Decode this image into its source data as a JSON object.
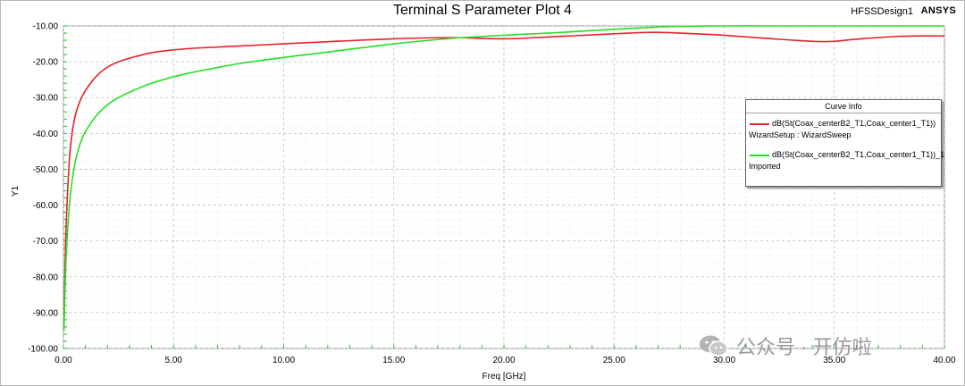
{
  "header": {
    "title": "Terminal S Parameter Plot 4",
    "design_name": "HFSSDesign1",
    "brand": "ANSYS"
  },
  "watermark": {
    "text": "公众号 · 开仿啦"
  },
  "legend": {
    "title": "Curve Info",
    "placement": "top-right",
    "entries": [
      {
        "name": "dB(St(Coax_centerB2_T1,Coax_center1_T1))",
        "source": "WizardSetup : WizardSweep",
        "color": "#e8202a"
      },
      {
        "name": "dB(St(Coax_centerB2_T1,Coax_center1_T1))_1",
        "source": "Imported",
        "color": "#22e022"
      }
    ]
  },
  "chart_data": {
    "type": "line",
    "title": "Terminal S Parameter Plot 4",
    "xlabel": "Freq [GHz]",
    "ylabel": "Y1",
    "xlim": [
      0,
      40
    ],
    "ylim": [
      -100,
      -10
    ],
    "xticks": [
      0,
      5,
      10,
      15,
      20,
      25,
      30,
      35,
      40
    ],
    "yticks": [
      -10,
      -20,
      -30,
      -40,
      -50,
      -60,
      -70,
      -80,
      -90,
      -100
    ],
    "xtick_labels": [
      "0.00",
      "5.00",
      "10.00",
      "15.00",
      "20.00",
      "25.00",
      "30.00",
      "35.00",
      "40.00"
    ],
    "ytick_labels": [
      "-10.00",
      "-20.00",
      "-30.00",
      "-40.00",
      "-50.00",
      "-60.00",
      "-70.00",
      "-80.00",
      "-90.00",
      "-100.00"
    ],
    "grid": true,
    "legend_placement": "top-right",
    "series": [
      {
        "name": "dB(St(Coax_centerB2_T1,Coax_center1_T1))",
        "color": "#e8202a",
        "x": [
          0.02,
          0.1,
          0.2,
          0.3,
          0.5,
          0.75,
          1,
          1.5,
          2,
          2.5,
          3,
          4,
          5,
          6,
          8,
          10,
          12,
          15,
          17,
          18,
          20,
          22,
          24,
          26,
          27,
          28,
          30,
          32,
          34,
          35,
          36,
          38,
          40
        ],
        "y": [
          -95,
          -70,
          -55,
          -45,
          -36,
          -31,
          -28,
          -24,
          -21.5,
          -20,
          -19,
          -17.5,
          -16.7,
          -16.2,
          -15.6,
          -15,
          -14.4,
          -13.6,
          -13.3,
          -13.3,
          -13.6,
          -13.1,
          -12.5,
          -11.9,
          -11.8,
          -12.0,
          -12.6,
          -13.5,
          -14.3,
          -14.3,
          -13.7,
          -12.9,
          -12.8
        ]
      },
      {
        "name": "dB(St(Coax_centerB2_T1,Coax_center1_T1))_1",
        "color": "#22e022",
        "x": [
          0.02,
          0.1,
          0.2,
          0.3,
          0.5,
          0.75,
          1,
          1.5,
          2,
          2.5,
          3,
          4,
          5,
          6,
          8,
          10,
          12,
          15,
          17,
          18,
          20,
          22,
          24,
          26,
          27,
          28,
          30,
          32,
          34,
          35,
          36,
          38,
          40
        ],
        "y": [
          -95,
          -78,
          -66,
          -58,
          -49,
          -43,
          -39.5,
          -35,
          -32,
          -30,
          -28.5,
          -26,
          -24.2,
          -22.8,
          -20.5,
          -18.8,
          -17.3,
          -15,
          -13.8,
          -13.3,
          -12.6,
          -12.0,
          -11.3,
          -10.6,
          -10.3,
          -10.1,
          -10.0,
          -10.0,
          -10.0,
          -10.0,
          -10.0,
          -10.0,
          -10.0
        ]
      }
    ]
  }
}
